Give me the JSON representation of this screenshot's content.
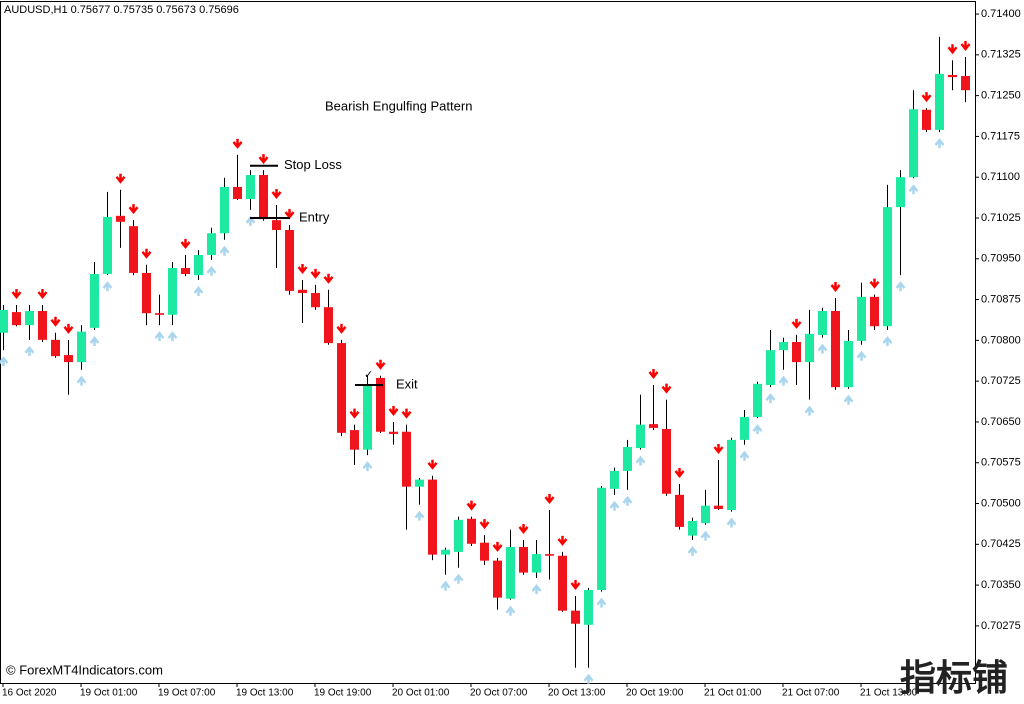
{
  "chart_data": {
    "type": "candlestick",
    "symbol_info": "AUDUSD,H1  0.75677 0.75735 0.75673 0.75696",
    "title": "Bearish Engulfing Pattern",
    "footer": "© ForexMT4Indicators.com",
    "watermark": "指标铺",
    "up_color": "#1de9a0",
    "down_color": "#f0141c",
    "wick_color": "#000000",
    "signal_colors": {
      "buy": "#a9d6ee",
      "sell": "#ff0000"
    },
    "categories": [
      "16 Oct 2020",
      null,
      null,
      null,
      null,
      null,
      "19 Oct 01:00",
      null,
      null,
      null,
      null,
      null,
      "19 Oct 07:00",
      null,
      null,
      null,
      null,
      null,
      "19 Oct 13:00",
      null,
      null,
      null,
      null,
      null,
      "19 Oct 19:00",
      null,
      null,
      null,
      null,
      null,
      "20 Oct 01:00",
      null,
      null,
      null,
      null,
      null,
      "20 Oct 07:00",
      null,
      null,
      null,
      null,
      null,
      "20 Oct 13:00",
      null,
      null,
      null,
      null,
      null,
      "20 Oct 19:00",
      null,
      null,
      null,
      null,
      null,
      "21 Oct 01:00",
      null,
      null,
      null,
      null,
      null,
      "21 Oct 07:00",
      null,
      null,
      null,
      null,
      null,
      "21 Oct 13:00",
      null,
      null,
      null,
      null,
      null,
      null,
      null,
      null
    ],
    "open": [
      0.70814,
      0.70852,
      0.70828,
      0.70854,
      0.70801,
      0.70773,
      0.7076,
      0.70823,
      0.70922,
      0.71029,
      0.7101,
      0.70924,
      0.7085,
      0.70847,
      0.70933,
      0.7092,
      0.70957,
      0.70997,
      0.71082,
      0.7106,
      0.71104,
      0.71021,
      0.71003,
      0.70893,
      0.70887,
      0.70861,
      0.70795,
      0.70635,
      0.70599,
      0.70731,
      0.70632,
      0.70632,
      0.70531,
      0.70544,
      0.70406,
      0.70411,
      0.70472,
      0.70428,
      0.70395,
      0.70325,
      0.7042,
      0.70373,
      0.70407,
      0.70404,
      0.70303,
      0.70277,
      0.70341,
      0.70527,
      0.7056,
      0.70602,
      0.70646,
      0.70637,
      0.70516,
      0.70441,
      0.70464,
      0.70496,
      0.70488,
      0.70617,
      0.70659,
      0.70718,
      0.70782,
      0.70797,
      0.7076,
      0.7081,
      0.70854,
      0.70714,
      0.70799,
      0.7088,
      0.70826,
      0.71045,
      0.711,
      0.71224,
      0.71187,
      0.71288,
      0.71286
    ],
    "high": [
      0.70865,
      0.70865,
      0.70865,
      0.70865,
      0.70814,
      0.70801,
      0.70828,
      0.70944,
      0.71073,
      0.71077,
      0.71021,
      0.70939,
      0.70884,
      0.70944,
      0.70957,
      0.70966,
      0.71007,
      0.71099,
      0.71141,
      0.71113,
      0.71113,
      0.71049,
      0.71012,
      0.70911,
      0.70902,
      0.70893,
      0.70801,
      0.70645,
      0.70736,
      0.70735,
      0.7065,
      0.70645,
      0.70547,
      0.70551,
      0.70419,
      0.70476,
      0.70476,
      0.70442,
      0.704,
      0.70452,
      0.70433,
      0.70433,
      0.70488,
      0.70411,
      0.7033,
      0.70345,
      0.70532,
      0.70566,
      0.70617,
      0.707,
      0.70718,
      0.70691,
      0.70536,
      0.70474,
      0.70525,
      0.7058,
      0.70621,
      0.70672,
      0.70724,
      0.70819,
      0.70805,
      0.7081,
      0.70856,
      0.7086,
      0.70878,
      0.70819,
      0.70906,
      0.70884,
      0.71086,
      0.71113,
      0.7126,
      0.71227,
      0.71358,
      0.71315,
      0.71321
    ],
    "low": [
      0.70782,
      0.70826,
      0.70801,
      0.70797,
      0.70768,
      0.707,
      0.70746,
      0.70819,
      0.7092,
      0.7097,
      0.7092,
      0.70828,
      0.70828,
      0.70828,
      0.70918,
      0.70911,
      0.70948,
      0.70985,
      0.71058,
      0.7104,
      0.7102,
      0.70933,
      0.70884,
      0.70832,
      0.70856,
      0.70792,
      0.70624,
      0.70571,
      0.70589,
      0.7063,
      0.70608,
      0.70452,
      0.70498,
      0.70396,
      0.70369,
      0.70382,
      0.70422,
      0.70387,
      0.70305,
      0.70323,
      0.70369,
      0.70363,
      0.7036,
      0.70301,
      0.70198,
      0.70198,
      0.70338,
      0.70516,
      0.70525,
      0.70599,
      0.70635,
      0.70514,
      0.70452,
      0.70433,
      0.70461,
      0.70488,
      0.70485,
      0.70608,
      0.70657,
      0.70714,
      0.70746,
      0.70718,
      0.70691,
      0.70805,
      0.70709,
      0.70711,
      0.70792,
      0.70819,
      0.70819,
      0.7092,
      0.71098,
      0.71183,
      0.71183,
      0.7126,
      0.71238
    ],
    "close": [
      0.70856,
      0.70828,
      0.70854,
      0.70801,
      0.70771,
      0.7076,
      0.70816,
      0.70922,
      0.71027,
      0.71018,
      0.70924,
      0.7085,
      0.70847,
      0.70933,
      0.70922,
      0.70957,
      0.70997,
      0.71082,
      0.7106,
      0.71104,
      0.71023,
      0.71003,
      0.70891,
      0.70887,
      0.70861,
      0.70795,
      0.7063,
      0.70599,
      0.70716,
      0.70632,
      0.70628,
      0.70531,
      0.70544,
      0.70406,
      0.70415,
      0.7047,
      0.70426,
      0.70395,
      0.70327,
      0.7042,
      0.70373,
      0.70407,
      0.70404,
      0.70303,
      0.70279,
      0.70341,
      0.70529,
      0.7056,
      0.70604,
      0.70645,
      0.70639,
      0.70518,
      0.70457,
      0.70468,
      0.70496,
      0.7049,
      0.70617,
      0.70659,
      0.7072,
      0.70782,
      0.70797,
      0.7076,
      0.70812,
      0.70854,
      0.70714,
      0.70799,
      0.7088,
      0.70826,
      0.71045,
      0.711,
      0.71225,
      0.71187,
      0.7129,
      0.71284,
      0.7126
    ],
    "signals": [
      "buy",
      "sell",
      "buy",
      "sell",
      "sell",
      "sell",
      "buy",
      "buy",
      "buy",
      "sell",
      "sell",
      "sell",
      "buy",
      "buy",
      "sell",
      "buy",
      "buy",
      "buy",
      "sell",
      "buy",
      "sell",
      "sell",
      "sell",
      "sell",
      "sell",
      "sell",
      "sell",
      "sell",
      "buy",
      "sell",
      "sell",
      "sell",
      "buy",
      "sell",
      "buy",
      "buy",
      "sell",
      "sell",
      "sell",
      "buy",
      "sell",
      "buy",
      "sell",
      "sell",
      "sell",
      "buy",
      "buy",
      "buy",
      "buy",
      "buy",
      "sell",
      "sell",
      "sell",
      "buy",
      "buy",
      "sell",
      "buy",
      "buy",
      "buy",
      "buy",
      "buy",
      "sell",
      "buy",
      "buy",
      "sell",
      "buy",
      "buy",
      "sell",
      "buy",
      "buy",
      "buy",
      "sell",
      "buy",
      "sell",
      "sell"
    ],
    "annotations": [
      {
        "label": "Stop Loss",
        "value": 0.71121
      },
      {
        "label": "Entry",
        "value": 0.71025
      },
      {
        "label": "Exit",
        "value": 0.70718,
        "mark": "✓"
      }
    ],
    "ylim": [
      0.7017,
      0.71424
    ],
    "yticks": [
      {
        "value": 0.714,
        "label": "0.71400"
      },
      {
        "value": 0.71325,
        "label": "0.71325"
      },
      {
        "value": 0.7125,
        "label": "0.71250"
      },
      {
        "value": 0.71175,
        "label": "0.71175"
      },
      {
        "value": 0.711,
        "label": "0.71100"
      },
      {
        "value": 0.71025,
        "label": "0.71025"
      },
      {
        "value": 0.7095,
        "label": "0.70950"
      },
      {
        "value": 0.70875,
        "label": "0.70875"
      },
      {
        "value": 0.708,
        "label": "0.70800"
      },
      {
        "value": 0.70725,
        "label": "0.70725"
      },
      {
        "value": 0.7065,
        "label": "0.70650"
      },
      {
        "value": 0.70575,
        "label": "0.70575"
      },
      {
        "value": 0.705,
        "label": "0.70500"
      },
      {
        "value": 0.70425,
        "label": "0.70425"
      },
      {
        "value": 0.7035,
        "label": "0.70350"
      },
      {
        "value": 0.70275,
        "label": "0.70275"
      }
    ]
  }
}
